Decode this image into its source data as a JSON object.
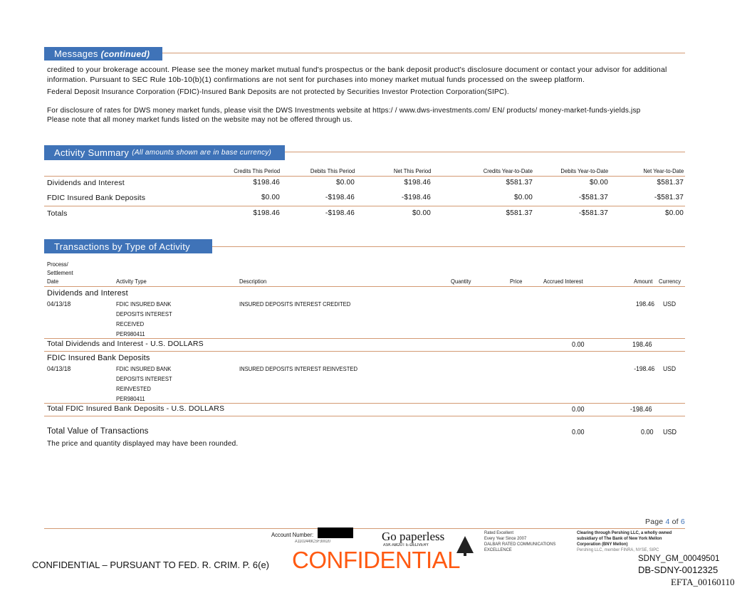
{
  "messages": {
    "title": "Messages",
    "title_suffix": "(continued)",
    "para1": "credited to your brokerage account. Please see the money market mutual fund's prospectus or the bank deposit product's disclosure document or contact your advisor for additional information. Pursuant to SEC Rule 10b-10(b)(1) confirmations are not sent for purchases into money market mutual funds processed on the sweep platform.",
    "para2": "Federal Deposit Insurance Corporation (FDIC)-Insured Bank Deposits are not protected by Securities Investor Protection Corporation(SIPC).",
    "para3a": "For disclosure of rates for DWS money market funds, please visit the DWS Investments website at https:/ / www.dws-investments.com/ EN/ products/ money-market-funds-yields.jsp",
    "para3b": "Please note that all money market funds listed on the website may not be offered through us."
  },
  "activity_summary": {
    "title": "Activity Summary",
    "subtitle": "(All amounts shown are in base currency)",
    "columns": [
      "Credits This Period",
      "Debits This Period",
      "Net This Period",
      "Credits Year-to-Date",
      "Debits Year-to-Date",
      "Net Year-to-Date"
    ],
    "rows": [
      {
        "label": "Dividends and Interest",
        "values": [
          "$198.46",
          "$0.00",
          "$198.46",
          "$581.37",
          "$0.00",
          "$581.37"
        ]
      },
      {
        "label": "FDIC Insured Bank Deposits",
        "values": [
          "$0.00",
          "-$198.46",
          "-$198.46",
          "$0.00",
          "-$581.37",
          "-$581.37"
        ]
      },
      {
        "label": "Totals",
        "values": [
          "$198.46",
          "-$198.46",
          "$0.00",
          "$581.37",
          "-$581.37",
          "$0.00"
        ]
      }
    ]
  },
  "transactions": {
    "title": "Transactions by Type of Activity",
    "headers": {
      "date1": "Process/",
      "date2": "Settlement",
      "date3": "Date",
      "activity": "Activity Type",
      "description": "Description",
      "quantity": "Quantity",
      "price": "Price",
      "accrued": "Accrued Interest",
      "amount": "Amount",
      "currency": "Currency"
    },
    "groups": [
      {
        "name": "Dividends and Interest",
        "date": "04/13/18",
        "activity": [
          "FDIC INSURED BANK",
          "DEPOSITS INTEREST",
          "RECEIVED",
          "PER980411"
        ],
        "description": "INSURED DEPOSITS INTEREST CREDITED",
        "amount": "198.46",
        "currency": "USD",
        "total_label": "Total Dividends and Interest - U.S. DOLLARS",
        "total_accrued": "0.00",
        "total_amount": "198.46"
      },
      {
        "name": "FDIC Insured Bank Deposits",
        "date": "04/13/18",
        "activity": [
          "FDIC INSURED BANK",
          "DEPOSITS INTEREST",
          "REINVESTED",
          "PER980411"
        ],
        "description": "INSURED DEPOSITS INTEREST REINVESTED",
        "amount": "-198.46",
        "currency": "USD",
        "total_label": "Total FDIC Insured Bank Deposits - U.S. DOLLARS",
        "total_accrued": "0.00",
        "total_amount": "-198.46"
      }
    ],
    "grand_total": {
      "label": "Total Value of Transactions",
      "accrued": "0.00",
      "amount": "0.00",
      "currency": "USD"
    },
    "note": "The price and quantity displayed may have been rounded."
  },
  "footer": {
    "page_label": "Page",
    "page": "4",
    "of": "of",
    "total": "6",
    "account_label": "Account Number:",
    "account_code": "A1102449CSF30020",
    "go_paperless": "Go paperless",
    "ask": "ASK ABOUT E-DELIVERY",
    "dalbar": [
      "Rated Excellent",
      "Every Year Since 2007",
      "DALBAR RATED COMMUNICATIONS",
      "EXCELLENCE"
    ],
    "pershing": [
      "Clearing through Pershing LLC, a wholly owned",
      "subsidiary of The Bank of New York Mellon",
      "Corporation (BNY Mellon)",
      "Pershing LLC, member FINRA, NYSE, SIPC"
    ],
    "confidential_stamp": "CONFIDENTIAL",
    "confidential_notice": "CONFIDENTIAL – PURSUANT TO FED. R. CRIM. P. 6(e)",
    "bates1": "SDNY_GM_00049501",
    "bates2": "DB-SDNY-0012325",
    "efta": "EFTA_00160110"
  },
  "colors": {
    "header_blue": "#3f73b8",
    "rule_orange": "#d39a73",
    "stamp": "#ff5a12"
  }
}
